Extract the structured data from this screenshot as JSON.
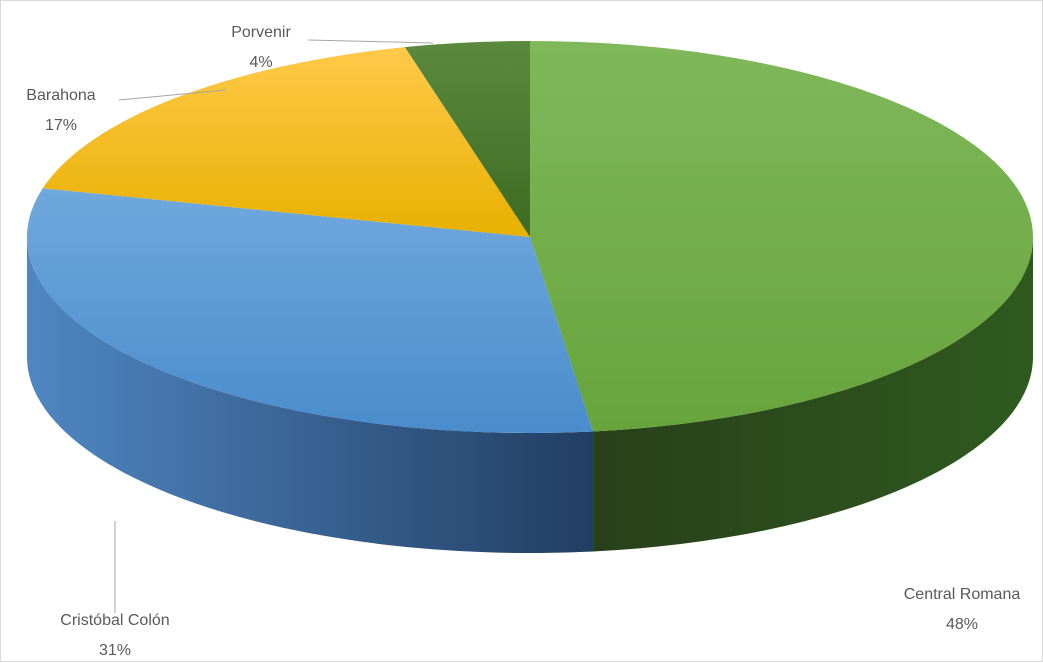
{
  "chart_data": {
    "type": "pie",
    "style": "3d",
    "slices": [
      {
        "label": "Central Romana",
        "value": 48,
        "value_label": "48%",
        "color": "#70ad47"
      },
      {
        "label": "Cristóbal Colón",
        "value": 31,
        "value_label": "31%",
        "color": "#5b9bd5"
      },
      {
        "label": "Barahona",
        "value": 17,
        "value_label": "17%",
        "color": "#ffc000"
      },
      {
        "label": "Porvenir",
        "value": 4,
        "value_label": "4%",
        "color": "#4e7a2e"
      }
    ],
    "title": "",
    "legend": "none"
  }
}
